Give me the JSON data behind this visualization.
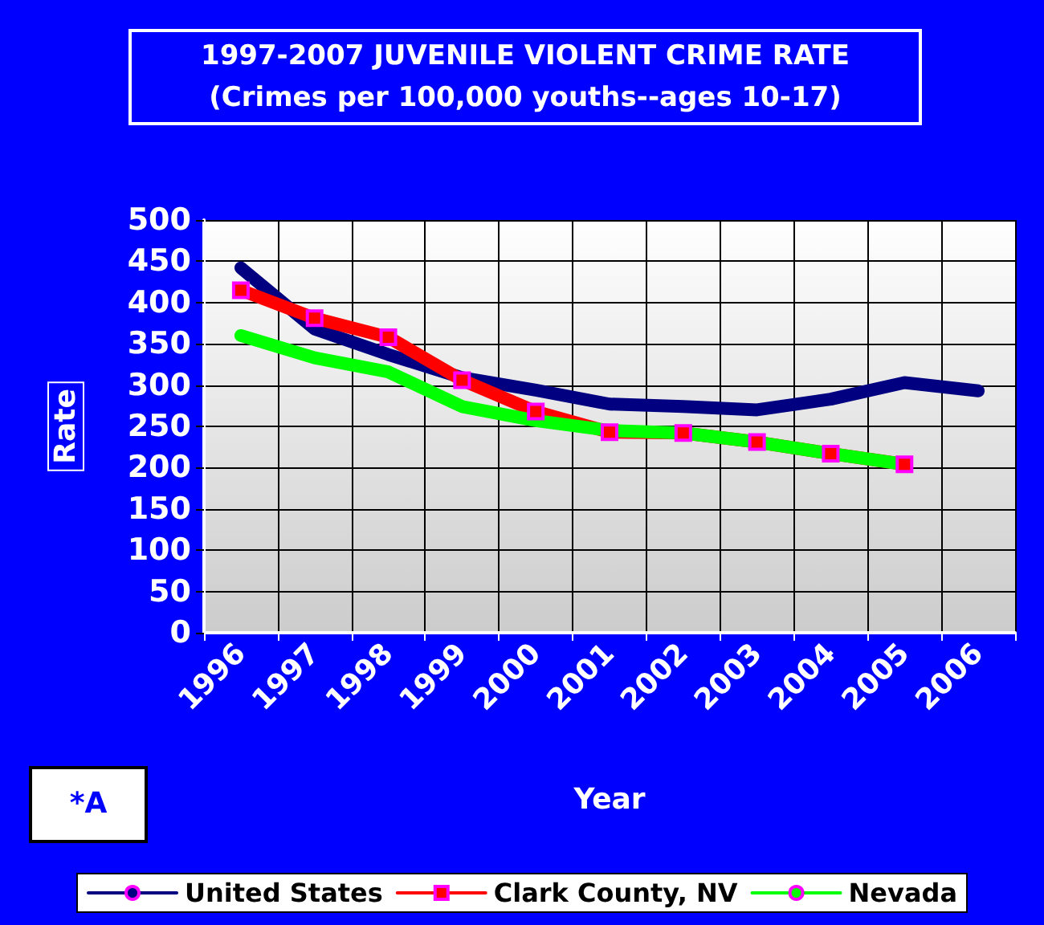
{
  "chart_data": {
    "type": "line",
    "title": "1997-2007 JUVENILE VIOLENT CRIME RATE",
    "subtitle": "(Crimes per 100,000 youths--ages 10-17)",
    "xlabel": "Year",
    "ylabel": "Rate",
    "annotations": [
      "*A"
    ],
    "categories": [
      "1996",
      "1997",
      "1998",
      "1999",
      "2000",
      "2001",
      "2002",
      "2003",
      "2004",
      "2005",
      "2006"
    ],
    "series": [
      {
        "name": "United States",
        "color": "#000080",
        "marker": "none",
        "values": [
          442,
          368,
          337,
          309,
          294,
          277,
          274,
          270,
          283,
          303,
          293
        ]
      },
      {
        "name": "Clark County, NV",
        "color": "#ff0000",
        "marker": "square",
        "values": [
          415,
          381,
          358,
          306,
          268,
          243,
          242,
          231,
          217,
          204,
          null
        ]
      },
      {
        "name": "Nevada",
        "color": "#00ff00",
        "marker": "none",
        "values": [
          360,
          333,
          316,
          274,
          257,
          245,
          242,
          231,
          217,
          204,
          null
        ]
      }
    ],
    "ylim": [
      0,
      500
    ],
    "yticks": [
      0,
      50,
      100,
      150,
      200,
      250,
      300,
      350,
      400,
      450,
      500
    ],
    "grid": true,
    "legend": "bottom",
    "line_style": "solid"
  }
}
